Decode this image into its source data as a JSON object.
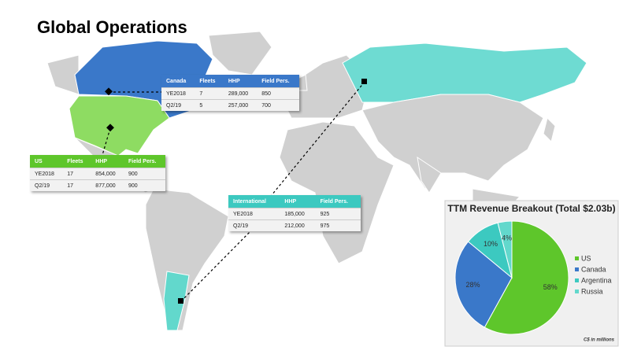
{
  "title": "Global Operations",
  "tables": [
    {
      "header": [
        "Canada",
        "Fleets",
        "HHP",
        "Field Pers."
      ],
      "rows": [
        [
          "YE2018",
          "7",
          "289,000",
          "850"
        ],
        [
          "Q2/19",
          "5",
          "257,000",
          "700"
        ]
      ]
    },
    {
      "header": [
        "US",
        "Fleets",
        "HHP",
        "Field Pers."
      ],
      "rows": [
        [
          "YE2018",
          "17",
          "854,000",
          "900"
        ],
        [
          "Q2/19",
          "17",
          "877,000",
          "900"
        ]
      ]
    },
    {
      "header": [
        "International",
        "HHP",
        "Field Pers."
      ],
      "rows": [
        [
          "YE2018",
          "185,000",
          "925"
        ],
        [
          "Q2/19",
          "212,000",
          "975"
        ]
      ]
    }
  ],
  "chart_data": {
    "type": "pie",
    "title": "TTM Revenue Breakout (Total $2.03b)",
    "note": "C$ in millions",
    "categories": [
      "US",
      "Canada",
      "Argentina",
      "Russia"
    ],
    "values": [
      58,
      28,
      10,
      4
    ],
    "value_labels": [
      "58%",
      "28%",
      "10%",
      "4%"
    ],
    "colors": [
      "#5ec62b",
      "#3a78c9",
      "#3cc9c0",
      "#62d8cc"
    ]
  }
}
